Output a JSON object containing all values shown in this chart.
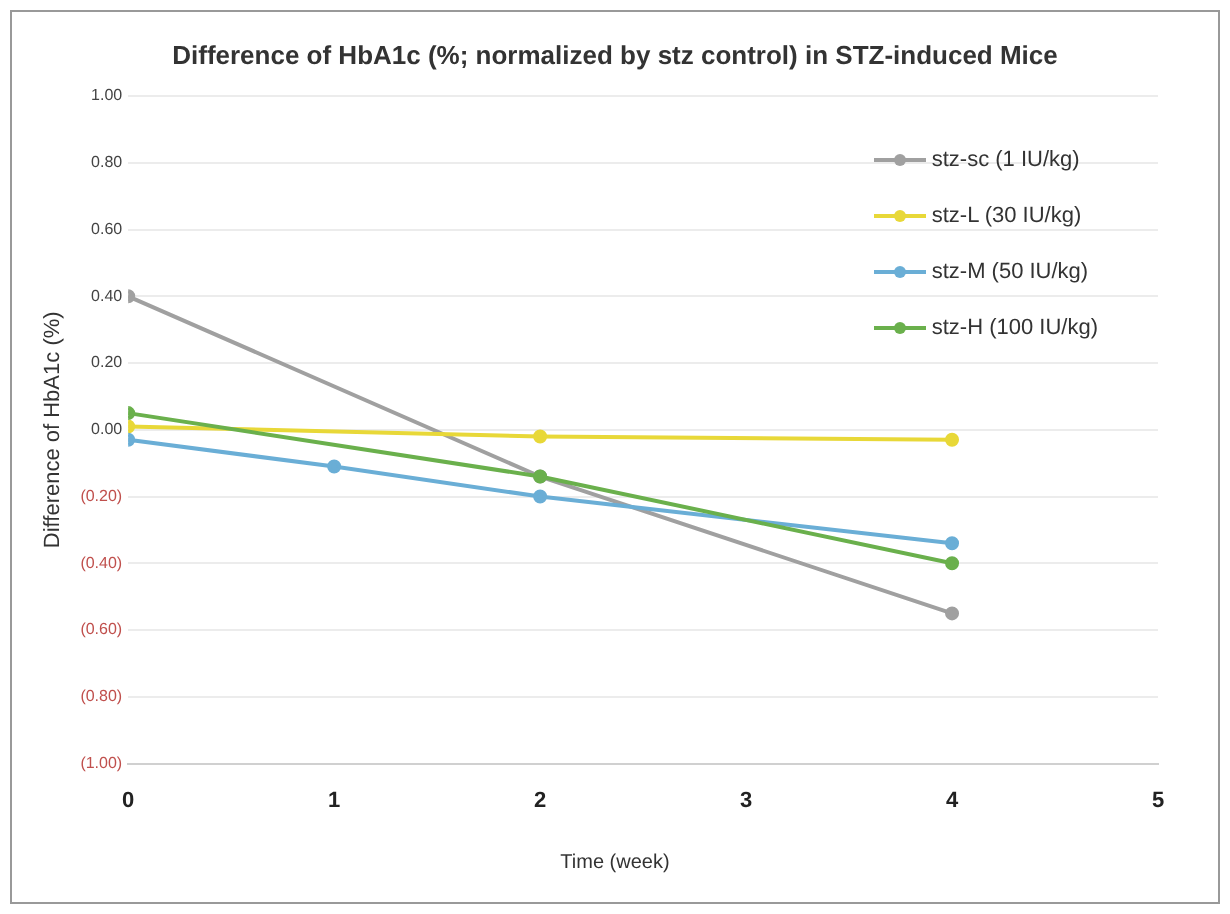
{
  "chart_data": {
    "type": "line",
    "title": "Difference of HbA1c (%; normalized by stz control) in STZ-induced Mice",
    "xlabel": "Time (week)",
    "ylabel": "Difference of HbA1c (%)",
    "xlim": [
      0,
      5
    ],
    "xticks": [
      0,
      1,
      2,
      3,
      4,
      5
    ],
    "ylim": [
      -1,
      1
    ],
    "yticks": [
      {
        "value": -1,
        "label": "(1.00)"
      },
      {
        "value": -0.8,
        "label": "(0.80)"
      },
      {
        "value": -0.6,
        "label": "(0.60)"
      },
      {
        "value": -0.4,
        "label": "(0.40)"
      },
      {
        "value": -0.2,
        "label": "(0.20)"
      },
      {
        "value": 0,
        "label": "0.00"
      },
      {
        "value": 0.2,
        "label": "0.20"
      },
      {
        "value": 0.4,
        "label": "0.40"
      },
      {
        "value": 0.6,
        "label": "0.60"
      },
      {
        "value": 0.8,
        "label": "0.80"
      },
      {
        "value": 1,
        "label": "1.00"
      }
    ],
    "grid": "y",
    "legend": "top right",
    "marker": "circle",
    "line_style": "solid",
    "series": [
      {
        "name": "stz-sc (1 IU/kg)",
        "color": "#a0a0a0",
        "x": [
          0,
          2,
          4
        ],
        "values": [
          0.4,
          -0.14,
          -0.55
        ]
      },
      {
        "name": "stz-L (30 IU/kg)",
        "color": "#e8d838",
        "x": [
          0,
          2,
          4
        ],
        "values": [
          0.01,
          -0.02,
          -0.03
        ]
      },
      {
        "name": "stz-M (50 IU/kg)",
        "color": "#6aaed6",
        "x": [
          0,
          1,
          2,
          4
        ],
        "values": [
          -0.03,
          -0.11,
          -0.2,
          -0.34
        ]
      },
      {
        "name": "stz-H (100 IU/kg)",
        "color": "#6ab04c",
        "x": [
          0,
          2,
          4
        ],
        "values": [
          0.05,
          -0.14,
          -0.4
        ]
      }
    ]
  }
}
